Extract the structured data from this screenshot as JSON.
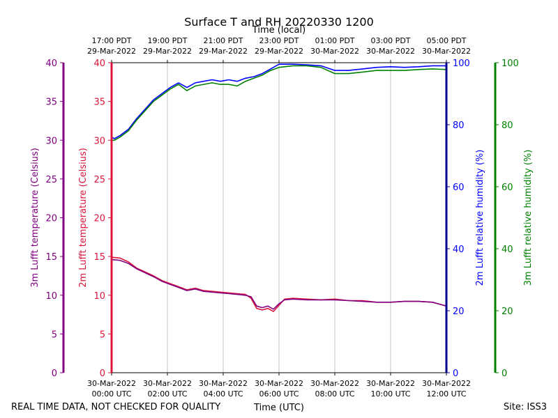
{
  "colors": {
    "t2m": "#dc143c",
    "t3m": "#800080",
    "rh2m": "#0000ff",
    "rh3m": "#008000",
    "axis": "#000000",
    "grid": "#b0b0b0",
    "rh_axis_2m": "#00008b"
  },
  "footer": {
    "left_note": "REAL TIME DATA, NOT CHECKED FOR QUALITY",
    "site": "Site: ISS3"
  },
  "chart_data": {
    "type": "line",
    "title": "Surface T and RH 20220330 1200",
    "xlabel": "Time (UTC)",
    "xlabel_top": "Time (local)",
    "xlim": [
      0,
      12
    ],
    "x_ticks": [
      0,
      2,
      4,
      6,
      8,
      10,
      12
    ],
    "x_tick_labels_bottom": [
      [
        "30-Mar-2022",
        "00:00 UTC"
      ],
      [
        "30-Mar-2022",
        "02:00 UTC"
      ],
      [
        "30-Mar-2022",
        "04:00 UTC"
      ],
      [
        "30-Mar-2022",
        "06:00 UTC"
      ],
      [
        "30-Mar-2022",
        "08:00 UTC"
      ],
      [
        "30-Mar-2022",
        "10:00 UTC"
      ],
      [
        "30-Mar-2022",
        "12:00 UTC"
      ]
    ],
    "x_tick_labels_top": [
      [
        "17:00 PDT",
        "29-Mar-2022"
      ],
      [
        "19:00 PDT",
        "29-Mar-2022"
      ],
      [
        "21:00 PDT",
        "29-Mar-2022"
      ],
      [
        "23:00 PDT",
        "29-Mar-2022"
      ],
      [
        "01:00 PDT",
        "30-Mar-2022"
      ],
      [
        "03:00 PDT",
        "30-Mar-2022"
      ],
      [
        "05:00 PDT",
        "30-Mar-2022"
      ]
    ],
    "temp_axes": [
      {
        "label": "3m Lufft temperature (Celsius)",
        "ylim": [
          0,
          40
        ],
        "ticks": [
          0,
          5,
          10,
          15,
          20,
          25,
          30,
          35,
          40
        ],
        "color_key": "t3m"
      },
      {
        "label": "2m Lufft temperature (Celsius)",
        "ylim": [
          0,
          40
        ],
        "ticks": [
          0,
          5,
          10,
          15,
          20,
          25,
          30,
          35,
          40
        ],
        "color_key": "t2m"
      }
    ],
    "rh_axes": [
      {
        "label": "2m Lufft relative humidity (%)",
        "ylim": [
          0,
          100
        ],
        "ticks": [
          0,
          20,
          40,
          60,
          80,
          100
        ],
        "color_key": "rh2m"
      },
      {
        "label": "3m Lufft relative humidity (%)",
        "ylim": [
          0,
          100
        ],
        "ticks": [
          0,
          20,
          40,
          60,
          80,
          100
        ],
        "color_key": "rh3m"
      }
    ],
    "series": [
      {
        "name": "2m Lufft relative humidity",
        "axis": "rh",
        "color_key": "rh2m",
        "x": [
          0,
          0.1,
          0.3,
          0.6,
          0.9,
          1.2,
          1.5,
          1.8,
          2.1,
          2.4,
          2.7,
          3.0,
          3.3,
          3.6,
          3.9,
          4.2,
          4.5,
          4.8,
          5.1,
          5.4,
          5.7,
          6.0,
          6.5,
          7.0,
          7.5,
          8.0,
          8.5,
          9.0,
          9.5,
          10.0,
          10.5,
          11.0,
          11.5,
          12.0
        ],
        "y": [
          76,
          75.5,
          76.5,
          78.5,
          82,
          85,
          88,
          90,
          92,
          93.5,
          92,
          93.5,
          94,
          94.5,
          94,
          94.5,
          94,
          95,
          95.5,
          96.5,
          98,
          99.5,
          99.5,
          99.3,
          99,
          97.5,
          97.5,
          98,
          98.5,
          98.7,
          98.5,
          98.7,
          99,
          99
        ]
      },
      {
        "name": "3m Lufft relative humidity",
        "axis": "rh",
        "color_key": "rh3m",
        "x": [
          0,
          0.1,
          0.3,
          0.6,
          0.9,
          1.2,
          1.5,
          1.8,
          2.1,
          2.4,
          2.7,
          3.0,
          3.3,
          3.6,
          3.9,
          4.2,
          4.5,
          4.8,
          5.1,
          5.4,
          5.7,
          6.0,
          6.5,
          7.0,
          7.5,
          8.0,
          8.5,
          9.0,
          9.5,
          10.0,
          10.5,
          11.0,
          11.5,
          12.0
        ],
        "y": [
          75,
          75,
          76,
          78,
          81.5,
          84.5,
          87.5,
          89.5,
          91.5,
          93,
          91,
          92.5,
          93,
          93.5,
          93,
          93,
          92.5,
          94,
          95,
          96,
          97.5,
          98.5,
          99,
          99,
          98.5,
          96.5,
          96.5,
          97,
          97.5,
          97.5,
          97.5,
          97.8,
          98,
          97.8
        ]
      },
      {
        "name": "2m Lufft temperature",
        "axis": "temp",
        "color_key": "t2m",
        "x": [
          0,
          0.3,
          0.6,
          0.9,
          1.2,
          1.5,
          1.8,
          2.1,
          2.4,
          2.7,
          3.0,
          3.3,
          3.6,
          3.9,
          4.2,
          4.5,
          4.8,
          5.0,
          5.2,
          5.4,
          5.6,
          5.8,
          6.0,
          6.2,
          6.5,
          7.0,
          7.5,
          8.0,
          8.5,
          9.0,
          9.5,
          10.0,
          10.5,
          11.0,
          11.5,
          12.0
        ],
        "y": [
          14.9,
          14.8,
          14.3,
          13.5,
          13,
          12.5,
          11.9,
          11.5,
          11.1,
          10.7,
          10.9,
          10.6,
          10.5,
          10.4,
          10.3,
          10.2,
          10.1,
          9.6,
          8.3,
          8.1,
          8.3,
          7.9,
          8.7,
          9.5,
          9.6,
          9.5,
          9.4,
          9.5,
          9.3,
          9.3,
          9.1,
          9.1,
          9.2,
          9.2,
          9.1,
          8.6
        ]
      },
      {
        "name": "3m Lufft temperature",
        "axis": "temp",
        "color_key": "t3m",
        "x": [
          0,
          0.3,
          0.6,
          0.9,
          1.2,
          1.5,
          1.8,
          2.1,
          2.4,
          2.7,
          3.0,
          3.3,
          3.6,
          3.9,
          4.2,
          4.5,
          4.8,
          5.0,
          5.2,
          5.4,
          5.6,
          5.8,
          6.0,
          6.2,
          6.5,
          7.0,
          7.5,
          8.0,
          8.5,
          9.0,
          9.5,
          10.0,
          10.5,
          11.0,
          11.5,
          12.0
        ],
        "y": [
          14.6,
          14.5,
          14.1,
          13.4,
          12.9,
          12.4,
          11.8,
          11.4,
          11.0,
          10.6,
          10.8,
          10.5,
          10.4,
          10.3,
          10.2,
          10.1,
          10.0,
          9.8,
          8.6,
          8.4,
          8.6,
          8.2,
          8.9,
          9.4,
          9.5,
          9.4,
          9.4,
          9.4,
          9.3,
          9.2,
          9.1,
          9.1,
          9.2,
          9.2,
          9.1,
          8.6
        ]
      }
    ],
    "grid": true
  }
}
